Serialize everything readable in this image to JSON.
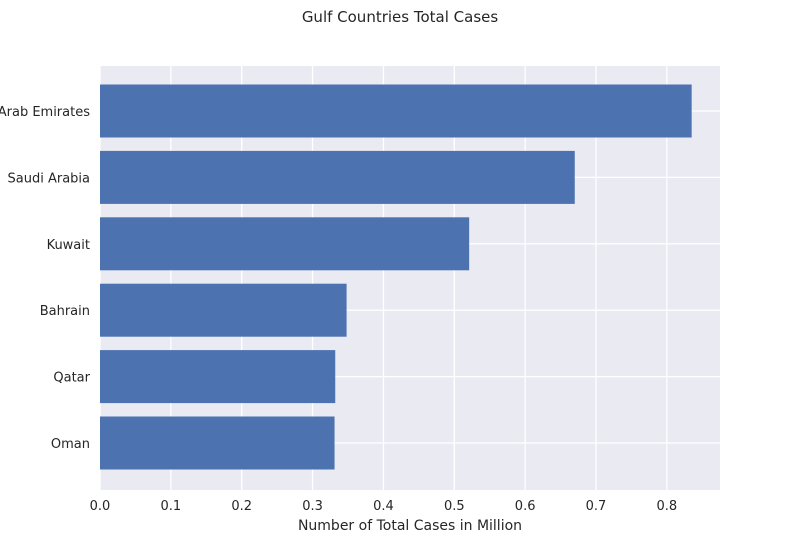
{
  "chart_data": {
    "type": "bar",
    "orientation": "horizontal",
    "title": "Gulf Countries Total Cases",
    "xlabel": "Number of Total Cases in Million",
    "ylabel": "",
    "categories": [
      "Arab Emirates",
      "Saudi Arabia",
      "Kuwait",
      "Bahrain",
      "Qatar",
      "Oman"
    ],
    "values": [
      0.835,
      0.67,
      0.521,
      0.348,
      0.332,
      0.331
    ],
    "xlim": [
      0,
      0.875
    ],
    "xticks": [
      "0.0",
      "0.1",
      "0.2",
      "0.3",
      "0.4",
      "0.5",
      "0.6",
      "0.7",
      "0.8"
    ],
    "grid": true,
    "bar_color": "#4c72b0",
    "background_color": "#eaeaf2"
  }
}
